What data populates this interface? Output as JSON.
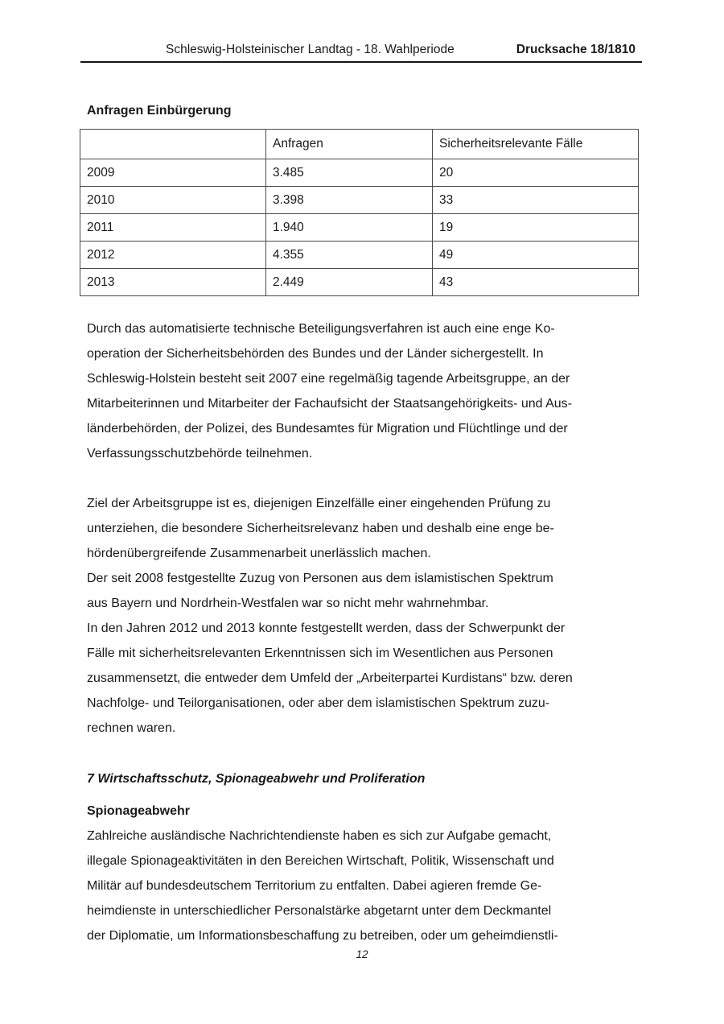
{
  "header": {
    "left": "Schleswig-Holsteinischer Landtag - 18. Wahlperiode",
    "right": "Drucksache 18/1810"
  },
  "table_section": {
    "title": "Anfragen Einbürgerung",
    "table": {
      "columns": [
        "",
        "Anfragen",
        "Sicherheitsrelevante Fälle"
      ],
      "rows": [
        [
          "2009",
          "3.485",
          "20"
        ],
        [
          "2010",
          "3.398",
          "33"
        ],
        [
          "2011",
          "1.940",
          "19"
        ],
        [
          "2012",
          "4.355",
          "49"
        ],
        [
          "2013",
          "2.449",
          "43"
        ]
      ]
    }
  },
  "body": {
    "paragraphs": [
      "Durch das automatisierte technische Beteiligungsverfahren ist auch eine enge Ko-\noperation der Sicherheitsbehörden des Bundes und der Länder sichergestellt. In\nSchleswig-Holstein besteht seit 2007 eine regelmäßig tagende Arbeitsgruppe, an der\nMitarbeiterinnen und Mitarbeiter der Fachaufsicht der Staatsangehörigkeits- und Aus-\nländerbehörden, der Polizei, des Bundesamtes für Migration und Flüchtlinge und der\nVerfassungsschutzbehörde teilnehmen.",
      "Ziel der Arbeitsgruppe ist es, diejenigen Einzelfälle einer eingehenden Prüfung zu\nunterziehen, die besondere Sicherheitsrelevanz haben und deshalb eine enge be-\nhördenübergreifende Zusammenarbeit unerlässlich machen.",
      "Der seit 2008 festgestellte Zuzug von Personen aus dem islamistischen Spektrum\naus Bayern und Nordrhein-Westfalen war so nicht mehr wahrnehmbar.",
      "In den Jahren 2012 und 2013 konnte festgestellt werden, dass der Schwerpunkt der\nFälle mit sicherheitsrelevanten Erkenntnissen sich im Wesentlichen aus Personen\nzusammensetzt, die entweder dem Umfeld der „Arbeiterpartei Kurdistans“ bzw. deren\nNachfolge- und Teilorganisationen, oder aber dem islamistischen Spektrum zuzu-\nrechnen waren."
    ],
    "section_heading": "7 Wirtschaftsschutz, Spionageabwehr und Proliferation",
    "sub_heading": "Spionageabwehr",
    "last_paragraph": "Zahlreiche ausländische Nachrichtendienste haben es sich zur Aufgabe gemacht,\nillegale Spionageaktivitäten in den Bereichen Wirtschaft, Politik, Wissenschaft und\nMilitär auf bundesdeutschem Territorium zu entfalten. Dabei agieren fremde Ge-\nheimdienste in unterschiedlicher Personalstärke abgetarnt unter dem Deckmantel\nder Diplomatie, um Informationsbeschaffung zu betreiben, oder um geheimdienstli-"
  },
  "footer": {
    "page_number": "12"
  },
  "colors": {
    "text": "#1a1a1a",
    "table_border": "#4a4a4a",
    "header_rule": "#141414",
    "background": "#ffffff"
  }
}
